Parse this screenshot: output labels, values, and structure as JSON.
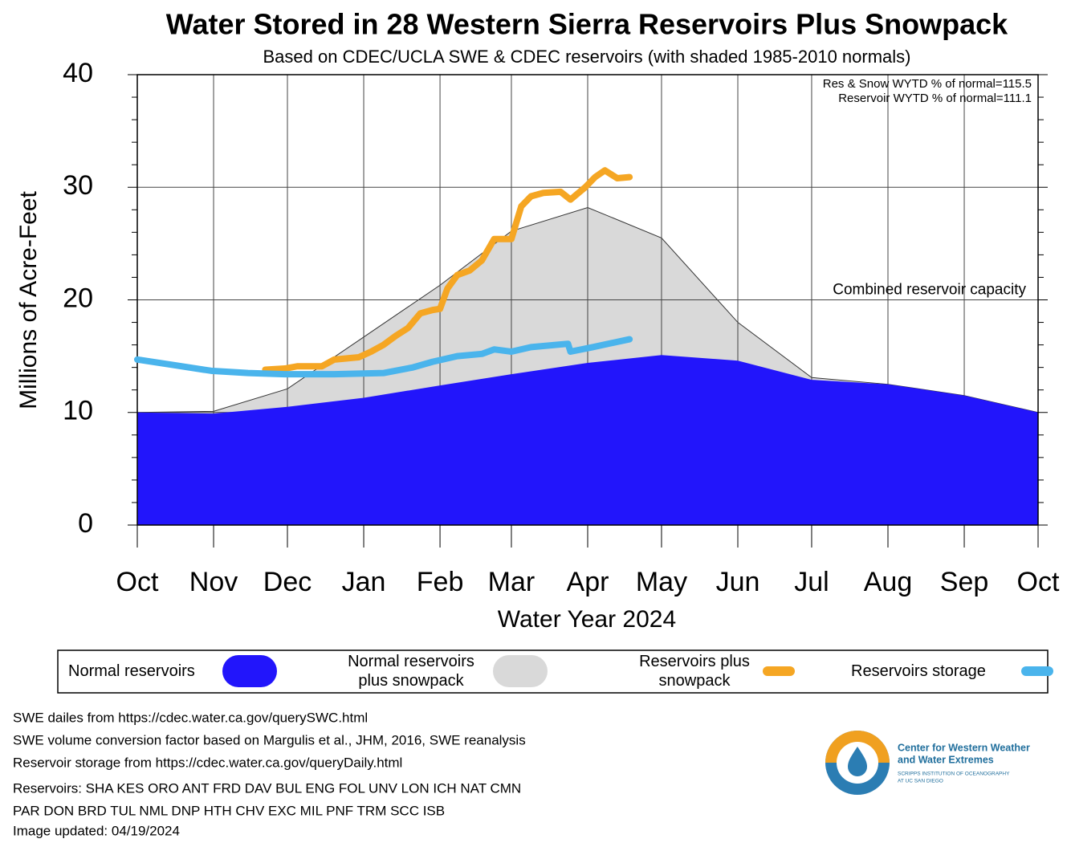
{
  "chart_data": {
    "type": "line",
    "title": "Water Stored in 28 Western Sierra Reservoirs Plus Snowpack",
    "subtitle": "Based on CDEC/UCLA SWE & CDEC reservoirs (with shaded 1985-2010 normals)",
    "y_label": "Millions of Acre-Feet",
    "x_label": "Water Year 2024",
    "annotations": [
      "Res & Snow WYTD % of normal=115.5",
      "Reservoir WYTD % of normal=111.1"
    ],
    "capacity": 20,
    "capacity_label": "Combined reservoir capacity",
    "xlim": [
      0,
      366
    ],
    "xticks": [
      {
        "value": 0,
        "label": "Oct"
      },
      {
        "value": 31,
        "label": "Nov"
      },
      {
        "value": 61,
        "label": "Dec"
      },
      {
        "value": 92,
        "label": "Jan"
      },
      {
        "value": 123,
        "label": "Feb"
      },
      {
        "value": 152,
        "label": "Mar"
      },
      {
        "value": 183,
        "label": "Apr"
      },
      {
        "value": 213,
        "label": "May"
      },
      {
        "value": 244,
        "label": "Jun"
      },
      {
        "value": 274,
        "label": "Jul"
      },
      {
        "value": 305,
        "label": "Aug"
      },
      {
        "value": 336,
        "label": "Sep"
      },
      {
        "value": 366,
        "label": "Oct"
      }
    ],
    "ylim": [
      0,
      40
    ],
    "yticks": [
      0,
      10,
      20,
      30,
      40
    ],
    "yminorticks": [
      2,
      4,
      6,
      8,
      12,
      14,
      16,
      18,
      22,
      24,
      26,
      28,
      32,
      34,
      36,
      38
    ],
    "grid": true,
    "legend": "bottom",
    "series": [
      {
        "name": "Normal reservoirs",
        "style": "area",
        "color": "#2215fb",
        "x": [
          0,
          31,
          61,
          92,
          123,
          152,
          183,
          213,
          244,
          274,
          305,
          336,
          366
        ],
        "values": [
          10.0,
          9.9,
          10.5,
          11.3,
          12.4,
          13.4,
          14.4,
          15.1,
          14.6,
          12.9,
          12.5,
          11.5,
          10.0
        ]
      },
      {
        "name": "Normal reservoirs plus snowpack",
        "style": "area",
        "color": "#d9d9d9",
        "x": [
          0,
          31,
          61,
          92,
          123,
          152,
          183,
          213,
          244,
          274,
          305,
          336,
          366
        ],
        "values": [
          10.0,
          10.1,
          12.1,
          16.7,
          21.3,
          26.1,
          28.2,
          25.5,
          18.0,
          13.1,
          12.5,
          11.5,
          10.0
        ]
      },
      {
        "name": "Reservoirs plus snowpack",
        "style": "line",
        "color": "#f5a623",
        "x": [
          52,
          60,
          65,
          75,
          80,
          90,
          95,
          100,
          105,
          110,
          115,
          120,
          123,
          126,
          130,
          135,
          140,
          145,
          152,
          156,
          160,
          165,
          172,
          176,
          182,
          186,
          190,
          195,
          200
        ],
        "values": [
          13.8,
          13.9,
          14.1,
          14.1,
          14.7,
          14.9,
          15.4,
          16.0,
          16.8,
          17.5,
          18.8,
          19.1,
          19.2,
          21.0,
          22.2,
          22.6,
          23.5,
          25.4,
          25.4,
          28.3,
          29.2,
          29.5,
          29.6,
          28.9,
          30.0,
          30.9,
          31.5,
          30.8,
          30.9
        ]
      },
      {
        "name": "Reservoirs storage",
        "style": "line",
        "color": "#4ab4ec",
        "x": [
          0,
          15,
          30,
          45,
          60,
          80,
          100,
          112,
          120,
          130,
          140,
          145,
          152,
          160,
          175,
          176,
          185,
          200
        ],
        "values": [
          14.7,
          14.2,
          13.7,
          13.5,
          13.4,
          13.4,
          13.5,
          14.0,
          14.5,
          15.0,
          15.2,
          15.6,
          15.4,
          15.8,
          16.1,
          15.4,
          15.8,
          16.5
        ]
      }
    ]
  },
  "notes": [
    "SWE dailes from https://cdec.water.ca.gov/querySWC.html",
    "SWE volume conversion factor based on Margulis et al., JHM, 2016, SWE reanalysis",
    "Reservoir storage from https://cdec.water.ca.gov/queryDaily.html",
    "Reservoirs: SHA KES ORO ANT FRD DAV BUL ENG FOL UNV LON ICH NAT CMN",
    "PAR DON BRD TUL NML DNP HTH CHV EXC MIL PNF TRM SCC ISB",
    "Image updated: 04/19/2024"
  ],
  "logo": [
    "Center for Western Weather",
    "and Water Extremes",
    "SCRIPPS INSTITUTION OF OCEANOGRAPHY",
    "AT UC SAN DIEGO"
  ]
}
